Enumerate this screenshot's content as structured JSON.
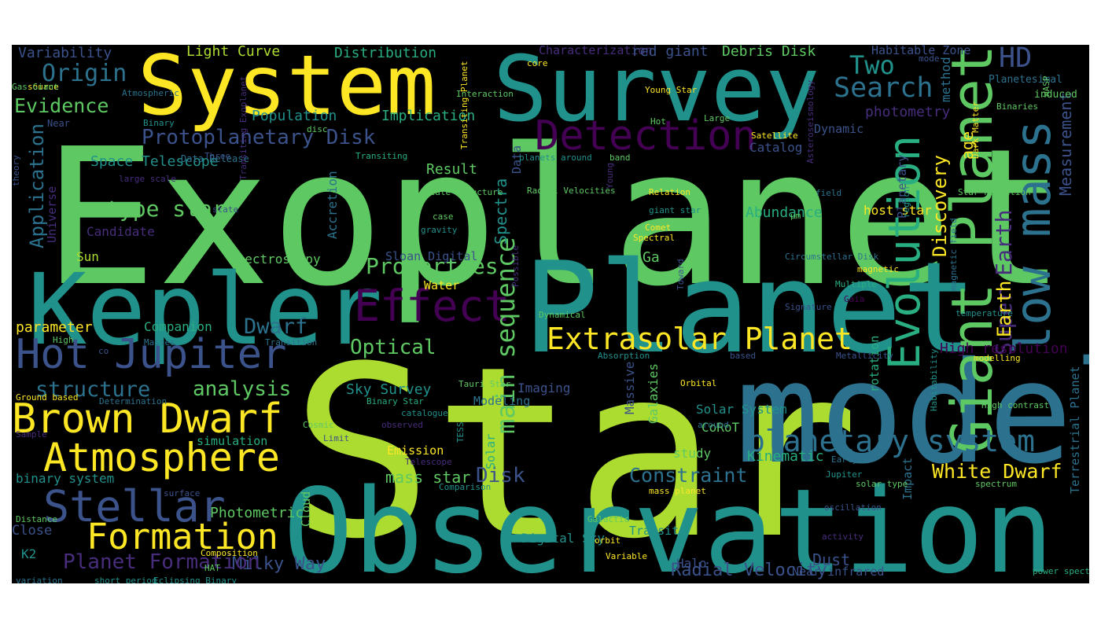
{
  "palette": {
    "background": "#000000",
    "colors": [
      "#440154",
      "#472d7b",
      "#3b528b",
      "#2c728e",
      "#21918c",
      "#28ae80",
      "#5ec962",
      "#addc30",
      "#fde725"
    ]
  },
  "words": [
    {
      "t": "Exoplanet",
      "c": "#5ec962"
    },
    {
      "t": "Star",
      "c": "#addc30"
    },
    {
      "t": "Observation",
      "c": "#21918c"
    },
    {
      "t": "model",
      "c": "#2c728e"
    },
    {
      "t": "Planet",
      "c": "#21918c"
    },
    {
      "t": "Kepler",
      "c": "#21918c"
    },
    {
      "t": "Survey",
      "c": "#21918c"
    },
    {
      "t": "System",
      "c": "#fde725"
    },
    {
      "t": "Effect",
      "c": "#440154"
    },
    {
      "t": "Detection",
      "c": "#440154"
    },
    {
      "t": "Evolution",
      "c": "#28ae80"
    },
    {
      "t": "Giant Planet",
      "c": "#5ec962"
    },
    {
      "t": "low mass",
      "c": "#2c728e"
    },
    {
      "t": "Hot Jupiter",
      "c": "#3b528b"
    },
    {
      "t": "Brown Dwarf",
      "c": "#fde725"
    },
    {
      "t": "Atmosphere",
      "c": "#fde725"
    },
    {
      "t": "Stellar",
      "c": "#3b528b"
    },
    {
      "t": "Formation",
      "c": "#fde725"
    },
    {
      "t": "Extrasolar Planet",
      "c": "#fde725"
    },
    {
      "t": "planetary system",
      "c": "#2c728e"
    },
    {
      "t": "Search",
      "c": "#2c728e"
    },
    {
      "t": "HD",
      "c": "#3b528b"
    },
    {
      "t": "Two",
      "c": "#21918c"
    },
    {
      "t": "Origin",
      "c": "#2c728e"
    },
    {
      "t": "Evidence",
      "c": "#5ec962"
    },
    {
      "t": "Protoplanetary Disk",
      "c": "#3b528b"
    },
    {
      "t": "Properties",
      "c": "#5ec962"
    },
    {
      "t": "main sequence",
      "c": "#5ec962"
    },
    {
      "t": "Discovery",
      "c": "#fde725"
    },
    {
      "t": "age",
      "c": "#fde725"
    },
    {
      "t": "Super Earth",
      "c": "#472d7b"
    },
    {
      "t": "Measurement",
      "c": "#3b528b"
    },
    {
      "t": "Application",
      "c": "#2c728e"
    },
    {
      "t": "type star",
      "c": "#5ec962"
    },
    {
      "t": "Disk",
      "c": "#3b528b"
    },
    {
      "t": "Constraint",
      "c": "#2c728e"
    },
    {
      "t": "White Dwarf",
      "c": "#fde725"
    },
    {
      "t": "Milky Way",
      "c": "#3b528b"
    },
    {
      "t": "Planet Formation",
      "c": "#472d7b"
    },
    {
      "t": "structure",
      "c": "#2c728e"
    },
    {
      "t": "analysis",
      "c": "#5ec962"
    },
    {
      "t": "Dwarf",
      "c": "#2c728e"
    },
    {
      "t": "Optical",
      "c": "#5ec962"
    },
    {
      "t": "Earth",
      "c": "#fde725"
    },
    {
      "t": "Dust",
      "c": "#3b528b"
    },
    {
      "t": "Radial Velocity",
      "c": "#3b528b"
    },
    {
      "t": "mass star",
      "c": "#5ec962"
    },
    {
      "t": "Spectra",
      "c": "#21918c"
    },
    {
      "t": "Variability",
      "c": "#3b528b"
    },
    {
      "t": "Light Curve",
      "c": "#addc30"
    },
    {
      "t": "Distribution",
      "c": "#28ae80"
    },
    {
      "t": "Characterization",
      "c": "#472d7b"
    },
    {
      "t": "red giant",
      "c": "#3b528b"
    },
    {
      "t": "Debris Disk",
      "c": "#5ec962"
    },
    {
      "t": "Habitable Zone",
      "c": "#3b528b"
    },
    {
      "t": "Population",
      "c": "#21918c"
    },
    {
      "t": "Implication",
      "c": "#28ae80"
    },
    {
      "t": "photometry",
      "c": "#472d7b"
    },
    {
      "t": "Dynamic",
      "c": "#3b528b"
    },
    {
      "t": "Catalog",
      "c": "#3b528b"
    },
    {
      "t": "Planetary",
      "c": "#3b528b"
    },
    {
      "t": "method",
      "c": "#2c728e"
    },
    {
      "t": "Space Telescope",
      "c": "#21918c"
    },
    {
      "t": "Result",
      "c": "#5ec962"
    },
    {
      "t": "Data",
      "c": "#3b528b"
    },
    {
      "t": "Abundance",
      "c": "#28ae80"
    },
    {
      "t": "host star",
      "c": "#fde725"
    },
    {
      "t": "Ga",
      "c": "#5ec962"
    },
    {
      "t": "High resolution",
      "c": "#440154"
    },
    {
      "t": "rotation",
      "c": "#28ae80"
    },
    {
      "t": "Sun",
      "c": "#addc30"
    },
    {
      "t": "Spectroscopy",
      "c": "#5ec962"
    },
    {
      "t": "Candidate",
      "c": "#472d7b"
    },
    {
      "t": "Universe",
      "c": "#472d7b"
    },
    {
      "t": "Accretion",
      "c": "#2c728e"
    },
    {
      "t": "Sloan Digital",
      "c": "#3b528b"
    },
    {
      "t": "Water",
      "c": "#fde725"
    },
    {
      "t": "parameter",
      "c": "#fde725"
    },
    {
      "t": "Companion",
      "c": "#28ae80"
    },
    {
      "t": "Sky Survey",
      "c": "#21918c"
    },
    {
      "t": "Modeling",
      "c": "#2c728e"
    },
    {
      "t": "Imaging",
      "c": "#3b528b"
    },
    {
      "t": "Massive",
      "c": "#3b528b"
    },
    {
      "t": "Galaxies",
      "c": "#5ec962"
    },
    {
      "t": "Solar System",
      "c": "#21918c"
    },
    {
      "t": "CoRoT",
      "c": "#5ec962"
    },
    {
      "t": "study",
      "c": "#5ec962"
    },
    {
      "t": "Kinematic",
      "c": "#28ae80"
    },
    {
      "t": "Terrestrial Planet",
      "c": "#2c728e"
    },
    {
      "t": "binary system",
      "c": "#21918c"
    },
    {
      "t": "simulation",
      "c": "#28ae80"
    },
    {
      "t": "Photometric",
      "c": "#5ec962"
    },
    {
      "t": "Close",
      "c": "#3b528b"
    },
    {
      "t": "Cloud",
      "c": "#5ec962"
    },
    {
      "t": "K2",
      "c": "#21918c"
    },
    {
      "t": "Solar",
      "c": "#28ae80"
    },
    {
      "t": "Digital Sky",
      "c": "#21918c"
    },
    {
      "t": "Transit",
      "c": "#21918c"
    },
    {
      "t": "Halo",
      "c": "#3b528b"
    },
    {
      "t": "Near infrared",
      "c": "#3b528b"
    },
    {
      "t": "Impact",
      "c": "#2c728e"
    },
    {
      "t": "Emission",
      "c": "#fde725"
    },
    {
      "t": "Atmospheric",
      "c": "#2c728e"
    },
    {
      "t": "source",
      "c": "#fde725"
    },
    {
      "t": "Gas Giant",
      "c": "#5ec962"
    },
    {
      "t": "Binary",
      "c": "#21918c"
    },
    {
      "t": "Near",
      "c": "#3b528b"
    },
    {
      "t": "theory",
      "c": "#3b528b"
    },
    {
      "t": "large scale",
      "c": "#472d7b"
    },
    {
      "t": "Data Release",
      "c": "#2c728e"
    },
    {
      "t": "state",
      "c": "#3b528b"
    },
    {
      "t": "disc",
      "c": "#5ec962"
    },
    {
      "t": "Three",
      "c": "#3b528b"
    },
    {
      "t": "Transiting",
      "c": "#28ae80"
    },
    {
      "t": "Transiting Exoplanet",
      "c": "#472d7b"
    },
    {
      "t": "Transiting Planet",
      "c": "#fde725"
    },
    {
      "t": "Interaction",
      "c": "#5ec962"
    },
    {
      "t": "core",
      "c": "#fde725"
    },
    {
      "t": "Young Star",
      "c": "#fde725"
    },
    {
      "t": "Hot",
      "c": "#5ec962"
    },
    {
      "t": "Large",
      "c": "#5ec962"
    },
    {
      "t": "Satellite",
      "c": "#fde725"
    },
    {
      "t": "planets around",
      "c": "#21918c"
    },
    {
      "t": "band",
      "c": "#5ec962"
    },
    {
      "t": "scale structure",
      "c": "#5ec962"
    },
    {
      "t": "Radial Velocities",
      "c": "#5ec962"
    },
    {
      "t": "Relation",
      "c": "#fde725"
    },
    {
      "t": "giant star",
      "c": "#21918c"
    },
    {
      "t": "Comet",
      "c": "#fde725"
    },
    {
      "t": "case",
      "c": "#5ec962"
    },
    {
      "t": "gravity",
      "c": "#21918c"
    },
    {
      "t": "Young",
      "c": "#472d7b"
    },
    {
      "t": "Spectral",
      "c": "#fde725"
    },
    {
      "t": "Asteroseismology",
      "c": "#472d7b"
    },
    {
      "t": "mode",
      "c": "#3b528b"
    },
    {
      "t": "Planetesimal",
      "c": "#2c728e"
    },
    {
      "t": "induced",
      "c": "#5ec962"
    },
    {
      "t": "Binaries",
      "c": "#5ec962"
    },
    {
      "t": "WASP",
      "c": "#5ec962"
    },
    {
      "t": "Dark Matter",
      "c": "#fde725"
    },
    {
      "t": "Star Formation",
      "c": "#5ec962"
    },
    {
      "t": "field",
      "c": "#2c728e"
    },
    {
      "t": "region",
      "c": "#21918c"
    },
    {
      "t": "μm",
      "c": "#5ec962"
    },
    {
      "t": "Circumstellar Disk",
      "c": "#2c728e"
    },
    {
      "t": "magnetic",
      "c": "#fde725"
    },
    {
      "t": "Multiple",
      "c": "#28ae80"
    },
    {
      "t": "Gaia",
      "c": "#440154"
    },
    {
      "t": "magnetic field",
      "c": "#2c728e"
    },
    {
      "t": "Dynamical",
      "c": "#5ec962"
    },
    {
      "t": "Possible",
      "c": "#472d7b"
    },
    {
      "t": "Toward",
      "c": "#3b528b"
    },
    {
      "t": "Signature",
      "c": "#3b528b"
    },
    {
      "t": "temperature",
      "c": "#21918c"
    },
    {
      "t": "High",
      "c": "#5ec962"
    },
    {
      "t": "Masses",
      "c": "#2c728e"
    },
    {
      "t": "co",
      "c": "#3b528b"
    },
    {
      "t": "Transition",
      "c": "#2c728e"
    },
    {
      "t": "Absorption",
      "c": "#21918c"
    },
    {
      "t": "based",
      "c": "#3b528b"
    },
    {
      "t": "Metallicity",
      "c": "#3b528b"
    },
    {
      "t": "modelling",
      "c": "#fde725"
    },
    {
      "t": "Habitability",
      "c": "#21918c"
    },
    {
      "t": "High contrast",
      "c": "#5ec962"
    },
    {
      "t": "Ground based",
      "c": "#fde725"
    },
    {
      "t": "Determination",
      "c": "#2c728e"
    },
    {
      "t": "Binary Star",
      "c": "#28ae80"
    },
    {
      "t": "Tauri Star",
      "c": "#5ec962"
    },
    {
      "t": "catalogue",
      "c": "#21918c"
    },
    {
      "t": "Sample",
      "c": "#472d7b"
    },
    {
      "t": "Cosmic",
      "c": "#5ec962"
    },
    {
      "t": "Limit",
      "c": "#3b528b"
    },
    {
      "t": "observed",
      "c": "#472d7b"
    },
    {
      "t": "TESS",
      "c": "#21918c"
    },
    {
      "t": "Telescope",
      "c": "#472d7b"
    },
    {
      "t": "Orbital",
      "c": "#fde725"
    },
    {
      "t": "around",
      "c": "#2c728e"
    },
    {
      "t": "Early",
      "c": "#2c728e"
    },
    {
      "t": "Jupiter",
      "c": "#21918c"
    },
    {
      "t": "solar type",
      "c": "#5ec962"
    },
    {
      "t": "spectrum",
      "c": "#5ec962"
    },
    {
      "t": "surface",
      "c": "#3b528b"
    },
    {
      "t": "Comparison",
      "c": "#21918c"
    },
    {
      "t": "mass planet",
      "c": "#fde725"
    },
    {
      "t": "oscillation",
      "c": "#3b528b"
    },
    {
      "t": "activity",
      "c": "#472d7b"
    },
    {
      "t": "Galactic",
      "c": "#5ec962"
    },
    {
      "t": "orbit",
      "c": "#fde725"
    },
    {
      "t": "Distance",
      "c": "#5ec962"
    },
    {
      "t": "Composition",
      "c": "#fde725"
    },
    {
      "t": "Variable",
      "c": "#fde725"
    },
    {
      "t": "variation",
      "c": "#2c728e"
    },
    {
      "t": "short period",
      "c": "#21918c"
    },
    {
      "t": "Eclipsing Binary",
      "c": "#21918c"
    },
    {
      "t": "HAT",
      "c": "#5ec962"
    },
    {
      "t": "power spectrum",
      "c": "#28ae80"
    },
    {
      "t": "metal poor",
      "c": "#5ec962"
    },
    {
      "t": "radio emission",
      "c": "#fde725"
    },
    {
      "t": "sequence star",
      "c": "#3b528b"
    },
    {
      "t": "SDSS",
      "c": "#5ec962"
    }
  ]
}
